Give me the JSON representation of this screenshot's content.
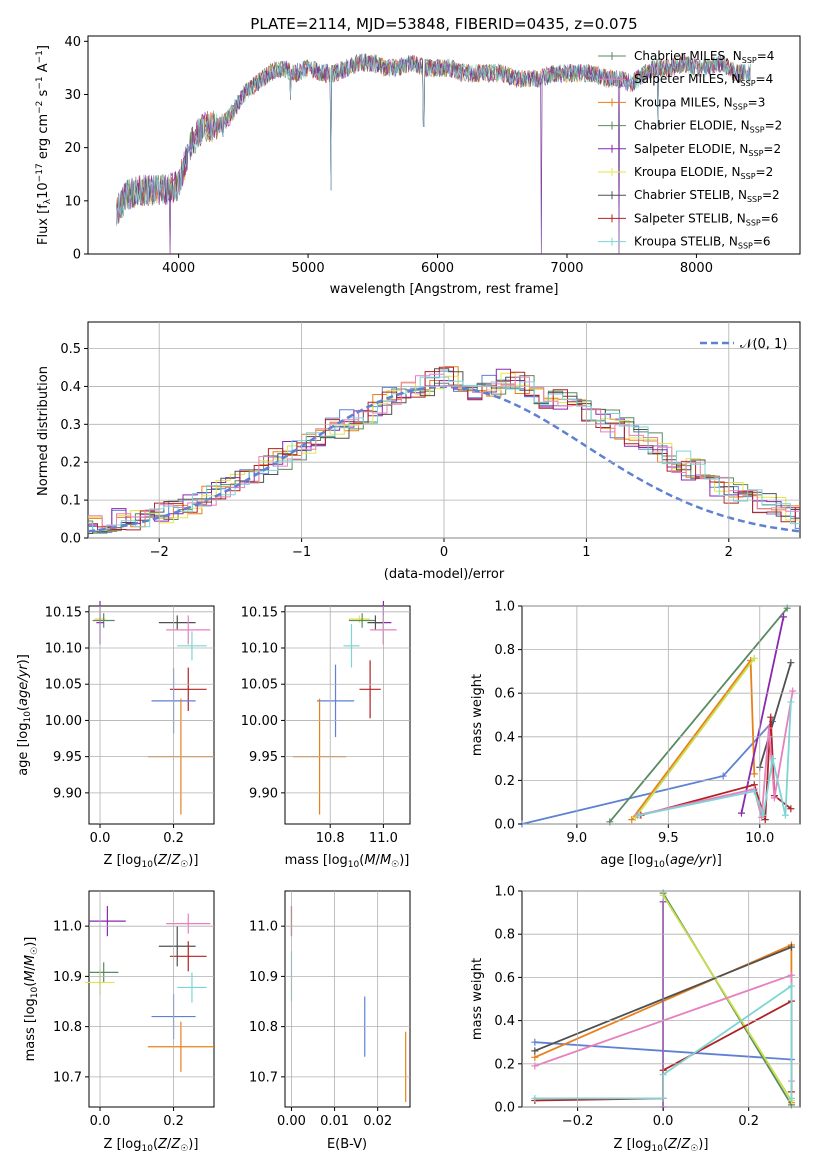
{
  "chart_data": [
    {
      "type": "line",
      "title": "PLATE=2114, MJD=53848, FIBERID=0435, z=0.075",
      "xlabel": "wavelength [Angstrom, rest frame]",
      "ylabel": "Flux [f_λ10^-17 erg cm^-2 s^-1 A^-1]",
      "xlim": [
        3300,
        8800
      ],
      "ylim": [
        0,
        41
      ],
      "xticks": [
        4000,
        5000,
        6000,
        7000,
        8000
      ],
      "yticks": [
        0,
        10,
        20,
        30,
        40
      ],
      "grid": false,
      "legend_position": "top-right",
      "legend": [
        "Chabrier MILES, N_SSP=4",
        "Salpeter MILES, N_SSP=4",
        "Kroupa MILES, N_SSP=3",
        "Chabrier ELODIE, N_SSP=2",
        "Salpeter ELODIE, N_SSP=2",
        "Kroupa ELODIE, N_SSP=2",
        "Chabrier STELIB, N_SSP=2",
        "Salpeter STELIB, N_SSP=6",
        "Kroupa STELIB, N_SSP=6"
      ],
      "continuum": {
        "x": [
          3520,
          3600,
          3700,
          3800,
          3900,
          4000,
          4050,
          4100,
          4200,
          4300,
          4400,
          4500,
          4600,
          4700,
          4800,
          4900,
          5000,
          5100,
          5200,
          5300,
          5400,
          5500,
          5600,
          5700,
          5800,
          5900,
          6000,
          6100,
          6200,
          6300,
          6400,
          6500,
          6600,
          6700,
          6800,
          6900,
          7000,
          7100,
          7200,
          7300,
          7400,
          7500,
          7600,
          7700,
          7800,
          7900,
          8000,
          8100,
          8200,
          8300,
          8400
        ],
        "y": [
          8,
          11,
          12,
          12,
          12,
          13,
          17,
          21,
          24,
          24,
          26,
          30,
          32,
          34,
          35,
          34,
          35,
          34,
          34,
          35,
          36,
          36,
          35,
          35,
          36,
          35,
          35,
          35,
          34,
          34,
          34,
          34,
          33,
          33,
          33,
          34,
          34,
          34,
          34,
          33,
          33,
          32,
          34,
          35,
          35,
          36,
          35,
          35,
          36,
          34,
          34
        ]
      },
      "dips": [
        {
          "x": 3934,
          "y": 0
        },
        {
          "x": 4340,
          "y": 22
        },
        {
          "x": 4862,
          "y": 29
        },
        {
          "x": 5175,
          "y": 12
        },
        {
          "x": 5893,
          "y": 24
        },
        {
          "x": 6800,
          "y": 0
        },
        {
          "x": 7400,
          "y": 0
        },
        {
          "x": 7700,
          "y": 24
        }
      ]
    },
    {
      "type": "histogram",
      "xlabel": "(data-model)/error",
      "ylabel": "Normed distribution",
      "xlim": [
        -2.5,
        2.5
      ],
      "ylim": [
        0,
        0.57
      ],
      "xticks": [
        -2,
        -1,
        0,
        1,
        2
      ],
      "yticks": [
        0.0,
        0.1,
        0.2,
        0.3,
        0.4,
        0.5
      ],
      "grid": true,
      "legend_position": "top-right",
      "reference_curve": {
        "label": "𝒩(0, 1)",
        "mean": 0,
        "sigma": 1
      },
      "bin_width": 0.1,
      "heights": [
        0.01,
        0.02,
        0.02,
        0.03,
        0.03,
        0.03,
        0.04,
        0.05,
        0.05,
        0.06,
        0.07,
        0.08,
        0.09,
        0.11,
        0.13,
        0.15,
        0.17,
        0.19,
        0.21,
        0.23,
        0.25,
        0.27,
        0.29,
        0.31,
        0.33,
        0.35,
        0.37,
        0.39,
        0.4,
        0.42,
        0.43,
        0.4,
        0.39,
        0.4,
        0.42,
        0.41,
        0.37,
        0.36,
        0.37,
        0.35,
        0.32,
        0.31,
        0.29,
        0.27,
        0.25,
        0.22,
        0.2,
        0.18,
        0.16,
        0.14,
        0.12,
        0.1,
        0.09,
        0.08,
        0.06,
        0.05,
        0.05,
        0.04,
        0.03,
        0.03
      ]
    },
    {
      "type": "errorbar",
      "xlabel": "Z [log10(Z/Z☉)]",
      "ylabel": "age  [log10(age/yr)]",
      "xlim": [
        -0.03,
        0.31
      ],
      "ylim": [
        9.857,
        10.158
      ],
      "xticks": [
        0.0,
        0.2
      ],
      "yticks": [
        9.9,
        9.95,
        10.0,
        10.05,
        10.1,
        10.15
      ],
      "points": [
        {
          "x": 0.0,
          "y": 10.14,
          "xerr": 0.015,
          "yerr": 0.005
        },
        {
          "x": 0.01,
          "y": 10.138,
          "xerr": 0.03,
          "yerr": 0.01
        },
        {
          "x": 0.0,
          "y": 10.135,
          "xerr": 0.01,
          "yerr": 0.03
        },
        {
          "x": 0.21,
          "y": 10.135,
          "xerr": 0.05,
          "yerr": 0.01
        },
        {
          "x": 0.24,
          "y": 10.125,
          "xerr": 0.06,
          "yerr": 0.02
        },
        {
          "x": 0.25,
          "y": 10.103,
          "xerr": 0.04,
          "yerr": 0.02
        },
        {
          "x": 0.24,
          "y": 10.043,
          "xerr": 0.05,
          "yerr": 0.03
        },
        {
          "x": 0.2,
          "y": 10.027,
          "xerr": 0.06,
          "yerr": 0.045
        },
        {
          "x": 0.22,
          "y": 9.95,
          "xerr": 0.09,
          "yerr": 0.08
        }
      ]
    },
    {
      "type": "errorbar",
      "xlabel": "mass [log10(M/M☉)]",
      "ylabel": "",
      "xlim": [
        10.63,
        11.1
      ],
      "ylim": [
        9.857,
        10.158
      ],
      "xticks": [
        10.8,
        11.0
      ],
      "yticks": [
        9.9,
        9.95,
        10.0,
        10.05,
        10.1,
        10.15
      ],
      "points": [
        {
          "x": 10.91,
          "y": 10.14,
          "xerr": 0.04,
          "yerr": 0.005
        },
        {
          "x": 10.92,
          "y": 10.138,
          "xerr": 0.05,
          "yerr": 0.01
        },
        {
          "x": 11.0,
          "y": 10.135,
          "xerr": 0.03,
          "yerr": 0.03
        },
        {
          "x": 10.97,
          "y": 10.135,
          "xerr": 0.03,
          "yerr": 0.01
        },
        {
          "x": 11.0,
          "y": 10.125,
          "xerr": 0.05,
          "yerr": 0.02
        },
        {
          "x": 10.88,
          "y": 10.103,
          "xerr": 0.03,
          "yerr": 0.03
        },
        {
          "x": 10.95,
          "y": 10.043,
          "xerr": 0.04,
          "yerr": 0.04
        },
        {
          "x": 10.82,
          "y": 10.027,
          "xerr": 0.07,
          "yerr": 0.05
        },
        {
          "x": 10.76,
          "y": 9.95,
          "xerr": 0.1,
          "yerr": 0.08
        }
      ]
    },
    {
      "type": "line",
      "xlabel": "age  [log10(age/yr)]",
      "ylabel": "mass weight",
      "xlim": [
        8.7,
        10.22
      ],
      "ylim": [
        0,
        1
      ],
      "xticks": [
        9.0,
        9.5,
        10.0
      ],
      "yticks": [
        0.0,
        0.2,
        0.4,
        0.6,
        0.8,
        1.0
      ],
      "grid": true,
      "series": [
        {
          "x": [
            8.7,
            9.8,
            10.07
          ],
          "y": [
            0.0,
            0.22,
            0.47
          ]
        },
        {
          "x": [
            9.3,
            9.95,
            9.97
          ],
          "y": [
            0.02,
            0.75,
            0.23
          ]
        },
        {
          "x": [
            9.18,
            10.15
          ],
          "y": [
            0.01,
            0.99
          ]
        },
        {
          "x": [
            9.9,
            10.13
          ],
          "y": [
            0.05,
            0.95
          ]
        },
        {
          "x": [
            9.32,
            9.97
          ],
          "y": [
            0.03,
            0.76
          ]
        },
        {
          "x": [
            10.0,
            10.17
          ],
          "y": [
            0.26,
            0.74
          ]
        },
        {
          "x": [
            9.35,
            9.97,
            10.03,
            10.06,
            10.08,
            10.17
          ],
          "y": [
            0.04,
            0.18,
            0.02,
            0.49,
            0.13,
            0.07
          ]
        },
        {
          "x": [
            9.33,
            9.97,
            10.01,
            10.05,
            10.08,
            10.18
          ],
          "y": [
            0.04,
            0.16,
            0.03,
            0.44,
            0.12,
            0.61
          ]
        },
        {
          "x": [
            9.34,
            9.97,
            10.02,
            10.07,
            10.14,
            10.17
          ],
          "y": [
            0.04,
            0.15,
            0.04,
            0.3,
            0.04,
            0.56
          ]
        }
      ]
    },
    {
      "type": "errorbar",
      "xlabel": "Z [log10(Z/Z☉)]",
      "ylabel": "mass [log10(M/M☉)]",
      "xlim": [
        -0.03,
        0.31
      ],
      "ylim": [
        10.64,
        11.07
      ],
      "xticks": [
        0.0,
        0.2
      ],
      "yticks": [
        10.7,
        10.8,
        10.9,
        11.0
      ],
      "points": [
        {
          "x": 0.02,
          "y": 11.01,
          "xerr": 0.05,
          "yerr": 0.03
        },
        {
          "x": 0.01,
          "y": 10.908,
          "xerr": 0.04,
          "yerr": 0.02
        },
        {
          "x": 0.0,
          "y": 10.888,
          "xerr": 0.04,
          "yerr": 0.025
        },
        {
          "x": 0.21,
          "y": 10.96,
          "xerr": 0.05,
          "yerr": 0.04
        },
        {
          "x": 0.24,
          "y": 11.005,
          "xerr": 0.06,
          "yerr": 0.02
        },
        {
          "x": 0.25,
          "y": 10.878,
          "xerr": 0.04,
          "yerr": 0.03
        },
        {
          "x": 0.24,
          "y": 10.94,
          "xerr": 0.05,
          "yerr": 0.03
        },
        {
          "x": 0.2,
          "y": 10.82,
          "xerr": 0.06,
          "yerr": 0.045
        },
        {
          "x": 0.22,
          "y": 10.76,
          "xerr": 0.09,
          "yerr": 0.05
        }
      ]
    },
    {
      "type": "errorbar",
      "xlabel": "E(B-V)",
      "ylabel": "",
      "xlim": [
        -0.0015,
        0.0275
      ],
      "ylim": [
        10.64,
        11.07
      ],
      "xticks": [
        0.0,
        0.01,
        0.02
      ],
      "yticks": [
        10.7,
        10.8,
        10.9,
        11.0
      ],
      "points": [
        {
          "x": 0.0,
          "y": 11.01,
          "yerr": 0.03
        },
        {
          "x": 0.0,
          "y": 10.9,
          "yerr": 0.05
        },
        {
          "x": 0.017,
          "y": 10.8,
          "yerr": 0.06
        },
        {
          "x": 0.0265,
          "y": 10.72,
          "yerr": 0.07
        }
      ]
    },
    {
      "type": "line",
      "xlabel": "Z [log10(Z/Z☉)]",
      "ylabel": "mass weight",
      "xlim": [
        -0.33,
        0.32
      ],
      "ylim": [
        0,
        1
      ],
      "xticks": [
        -0.2,
        0.0,
        0.2
      ],
      "yticks": [
        0.0,
        0.2,
        0.4,
        0.6,
        0.8,
        1.0
      ],
      "grid": true,
      "series": [
        {
          "x": [
            -0.3,
            0.3
          ],
          "y": [
            0.3,
            0.22
          ]
        },
        {
          "x": [
            -0.3,
            0.3,
            0.3
          ],
          "y": [
            0.23,
            0.75,
            0.02
          ]
        },
        {
          "x": [
            0.0,
            0.3
          ],
          "y": [
            0.99,
            0.01
          ]
        },
        {
          "x": [
            0.0,
            0.0
          ],
          "y": [
            0.0,
            0.95
          ]
        },
        {
          "x": [
            0.0,
            0.3
          ],
          "y": [
            0.98,
            0.03
          ]
        },
        {
          "x": [
            -0.3,
            0.3
          ],
          "y": [
            0.26,
            0.74
          ]
        },
        {
          "x": [
            -0.3,
            0.0,
            0.0,
            0.3,
            0.3
          ],
          "y": [
            0.03,
            0.04,
            0.17,
            0.49,
            0.07
          ]
        },
        {
          "x": [
            -0.3,
            0.3,
            0.3
          ],
          "y": [
            0.19,
            0.61,
            0.12
          ]
        },
        {
          "x": [
            -0.3,
            0.0,
            0.0,
            0.3,
            0.3
          ],
          "y": [
            0.04,
            0.04,
            0.15,
            0.56,
            0.04
          ]
        }
      ]
    }
  ],
  "colors": [
    "#5e81d4",
    "#e8801a",
    "#5a8a62",
    "#8a28b0",
    "#c8e04a",
    "#505050",
    "#b22222",
    "#e87fbf",
    "#7dd5d5"
  ]
}
